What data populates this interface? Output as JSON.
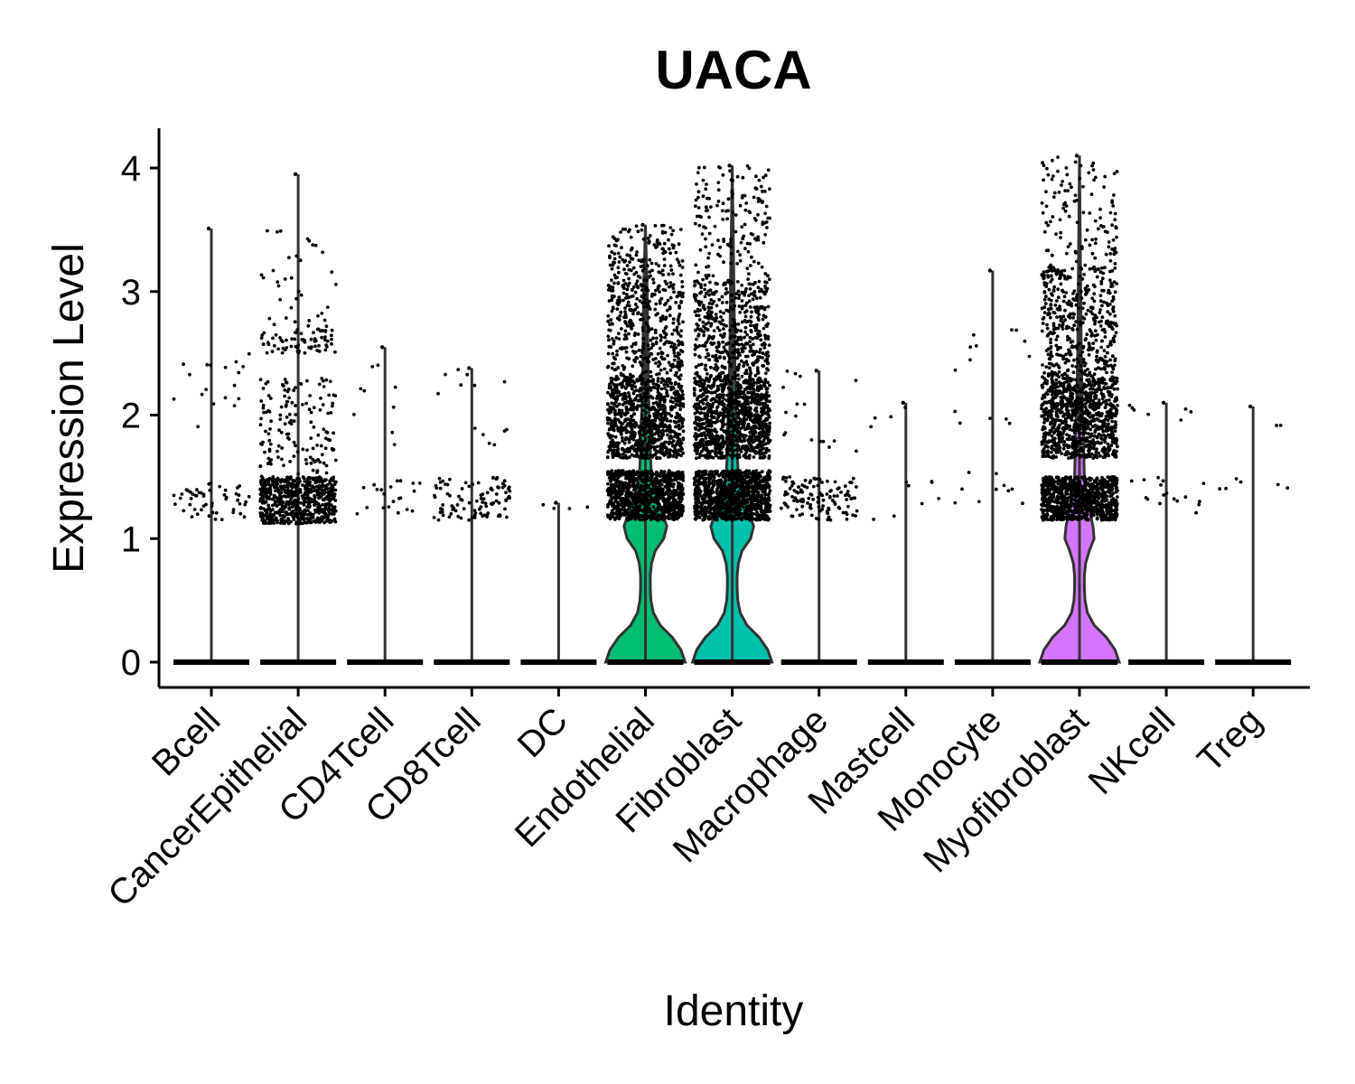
{
  "chart_data": {
    "type": "violin",
    "title": "UACA",
    "xlabel": "Identity",
    "ylabel": "Expression Level",
    "ylim": [
      -0.2,
      4.3
    ],
    "yticks": [
      0,
      1,
      2,
      3,
      4
    ],
    "grid": false,
    "legend": "none",
    "categories": [
      "Bcell",
      "CancerEpithelial",
      "CD4Tcell",
      "CD8Tcell",
      "DC",
      "Endothelial",
      "Fibroblast",
      "Macrophage",
      "Mastcell",
      "Monocyte",
      "Myofibroblast",
      "NKcell",
      "Treg"
    ],
    "series": [
      {
        "category": "Bcell",
        "max": 3.51,
        "color": "#F8766D",
        "nonzero_points": 70,
        "bands": [
          [
            1.15,
            1.45,
            0.75
          ],
          [
            1.9,
            2.65,
            0.25
          ]
        ]
      },
      {
        "category": "CancerEpithelial",
        "max": 3.95,
        "color": "#E18A00",
        "nonzero_points": 900,
        "bands": [
          [
            1.12,
            1.5,
            0.72
          ],
          [
            1.5,
            2.3,
            0.16
          ],
          [
            2.5,
            2.7,
            0.08
          ],
          [
            2.7,
            3.5,
            0.04
          ]
        ]
      },
      {
        "category": "CD4Tcell",
        "max": 2.55,
        "color": "#BE9C00",
        "nonzero_points": 30,
        "bands": [
          [
            1.2,
            1.5,
            0.7
          ],
          [
            1.75,
            2.6,
            0.3
          ]
        ]
      },
      {
        "category": "CD8Tcell",
        "max": 2.38,
        "color": "#8CAB00",
        "nonzero_points": 110,
        "bands": [
          [
            1.15,
            1.5,
            0.88
          ],
          [
            1.75,
            2.4,
            0.12
          ]
        ]
      },
      {
        "category": "DC",
        "max": 1.29,
        "color": "#24B700",
        "nonzero_points": 4,
        "bands": [
          [
            1.18,
            1.3,
            1.0
          ]
        ]
      },
      {
        "category": "Endothelial",
        "max": 3.54,
        "color": "#00BE70",
        "nonzero_points": 2200,
        "bands": [
          [
            1.15,
            1.55,
            0.4
          ],
          [
            1.65,
            1.95,
            0.18
          ],
          [
            1.95,
            2.3,
            0.18
          ],
          [
            2.3,
            3.1,
            0.18
          ],
          [
            3.1,
            3.54,
            0.06
          ]
        ]
      },
      {
        "category": "Fibroblast",
        "max": 4.02,
        "color": "#00C1AB",
        "nonzero_points": 2600,
        "bands": [
          [
            1.15,
            1.55,
            0.38
          ],
          [
            1.65,
            1.95,
            0.18
          ],
          [
            1.95,
            2.3,
            0.2
          ],
          [
            2.3,
            3.1,
            0.18
          ],
          [
            3.1,
            4.02,
            0.06
          ]
        ]
      },
      {
        "category": "Macrophage",
        "max": 2.36,
        "color": "#00BBDA",
        "nonzero_points": 140,
        "bands": [
          [
            1.15,
            1.5,
            0.88
          ],
          [
            1.7,
            2.4,
            0.12
          ]
        ]
      },
      {
        "category": "Mastcell",
        "max": 2.1,
        "color": "#00ACFC",
        "nonzero_points": 12,
        "bands": [
          [
            1.15,
            1.5,
            0.7
          ],
          [
            1.9,
            2.1,
            0.3
          ]
        ]
      },
      {
        "category": "Monocyte",
        "max": 3.17,
        "color": "#8B93FF",
        "nonzero_points": 24,
        "bands": [
          [
            1.25,
            1.55,
            0.4
          ],
          [
            1.9,
            2.7,
            0.6
          ]
        ]
      },
      {
        "category": "Myofibroblast",
        "max": 4.1,
        "color": "#D575FE",
        "nonzero_points": 2300,
        "bands": [
          [
            1.15,
            1.5,
            0.38
          ],
          [
            1.65,
            1.95,
            0.18
          ],
          [
            1.95,
            2.3,
            0.2
          ],
          [
            2.3,
            3.2,
            0.19
          ],
          [
            3.2,
            4.1,
            0.05
          ]
        ]
      },
      {
        "category": "NKcell",
        "max": 2.1,
        "color": "#F962DD",
        "nonzero_points": 24,
        "bands": [
          [
            1.2,
            1.5,
            0.7
          ],
          [
            1.9,
            2.1,
            0.3
          ]
        ]
      },
      {
        "category": "Treg",
        "max": 2.07,
        "color": "#FF65AC",
        "nonzero_points": 8,
        "bands": [
          [
            1.38,
            1.5,
            0.7
          ],
          [
            1.9,
            2.07,
            0.3
          ]
        ]
      }
    ],
    "violin_shape": {
      "Endothelial": [
        [
          0,
          0.065
        ],
        [
          0.1,
          0.058
        ],
        [
          0.2,
          0.044
        ],
        [
          0.3,
          0.024
        ],
        [
          0.4,
          0.013
        ],
        [
          0.5,
          0.009
        ],
        [
          0.6,
          0.008
        ],
        [
          0.7,
          0.008
        ],
        [
          0.8,
          0.01
        ],
        [
          0.9,
          0.016
        ],
        [
          1.0,
          0.03
        ],
        [
          1.1,
          0.035
        ],
        [
          1.2,
          0.028
        ],
        [
          1.35,
          0.018
        ],
        [
          1.5,
          0.01
        ],
        [
          1.7,
          0.008
        ],
        [
          1.85,
          0.009
        ],
        [
          2.0,
          0.006
        ],
        [
          2.5,
          0.004
        ],
        [
          3.0,
          0.003
        ],
        [
          3.54,
          0
        ]
      ],
      "Fibroblast": [
        [
          0,
          0.065
        ],
        [
          0.1,
          0.058
        ],
        [
          0.2,
          0.044
        ],
        [
          0.3,
          0.024
        ],
        [
          0.4,
          0.013
        ],
        [
          0.5,
          0.009
        ],
        [
          0.6,
          0.008
        ],
        [
          0.7,
          0.008
        ],
        [
          0.8,
          0.01
        ],
        [
          0.9,
          0.016
        ],
        [
          1.0,
          0.03
        ],
        [
          1.1,
          0.035
        ],
        [
          1.2,
          0.028
        ],
        [
          1.35,
          0.018
        ],
        [
          1.5,
          0.01
        ],
        [
          1.7,
          0.008
        ],
        [
          1.85,
          0.009
        ],
        [
          2.0,
          0.006
        ],
        [
          2.5,
          0.004
        ],
        [
          3.0,
          0.003
        ],
        [
          4.02,
          0
        ]
      ],
      "Myofibroblast": [
        [
          0,
          0.065
        ],
        [
          0.1,
          0.058
        ],
        [
          0.2,
          0.044
        ],
        [
          0.3,
          0.024
        ],
        [
          0.4,
          0.013
        ],
        [
          0.5,
          0.009
        ],
        [
          0.6,
          0.008
        ],
        [
          0.7,
          0.008
        ],
        [
          0.8,
          0.01
        ],
        [
          0.9,
          0.016
        ],
        [
          1.0,
          0.024
        ],
        [
          1.1,
          0.022
        ],
        [
          1.2,
          0.018
        ],
        [
          1.35,
          0.012
        ],
        [
          1.5,
          0.008
        ],
        [
          1.7,
          0.007
        ],
        [
          1.9,
          0.007
        ],
        [
          2.0,
          0.005
        ],
        [
          2.5,
          0.003
        ],
        [
          3.0,
          0.002
        ],
        [
          4.1,
          0
        ]
      ]
    }
  }
}
